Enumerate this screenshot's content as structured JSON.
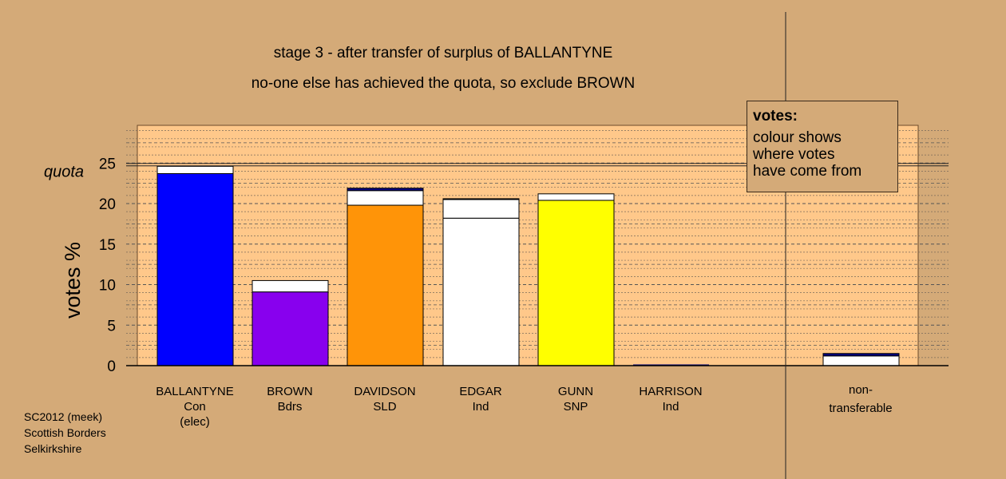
{
  "chart_data": {
    "type": "bar",
    "title": "stage 3 - after transfer of surplus of BALLANTYNE",
    "subtitle": "no-one else has achieved the quota, so exclude BROWN",
    "ylabel": "votes %",
    "ylim": [
      0,
      30
    ],
    "yticks": [
      0,
      5,
      10,
      15,
      20,
      25
    ],
    "quota": 24.8,
    "quota_label": "quota",
    "grid": true,
    "categories": [
      {
        "name": "BALLANTYNE",
        "party": "Con",
        "note": "(elec)",
        "base": 23.7,
        "base_color": "#0000ff",
        "segments": [
          {
            "value": 0.9,
            "color": "#ffffff"
          }
        ]
      },
      {
        "name": "BROWN",
        "party": "Bdrs",
        "note": "",
        "base": 9.1,
        "base_color": "#8800ee",
        "segments": [
          {
            "value": 1.4,
            "color": "#ffffff"
          }
        ]
      },
      {
        "name": "DAVIDSON",
        "party": "SLD",
        "note": "",
        "base": 19.8,
        "base_color": "#ff9408",
        "segments": [
          {
            "value": 1.8,
            "color": "#ffffff"
          },
          {
            "value": 0.3,
            "color": "#000080"
          }
        ]
      },
      {
        "name": "EDGAR",
        "party": "Ind",
        "note": "",
        "base": 18.2,
        "base_color": "#ffffff",
        "segments": [
          {
            "value": 2.3,
            "color": "#ffffff"
          },
          {
            "value": 0.1,
            "color": "#000080"
          }
        ]
      },
      {
        "name": "GUNN",
        "party": "SNP",
        "note": "",
        "base": 20.4,
        "base_color": "#ffff00",
        "segments": [
          {
            "value": 0.8,
            "color": "#ffffff"
          }
        ]
      },
      {
        "name": "HARRISON",
        "party": "Ind",
        "note": "",
        "base": 0,
        "base_color": "#ffffff",
        "segments": []
      }
    ],
    "nontransferable": {
      "label_line1": "non-",
      "label_line2": "transferable",
      "base": 0,
      "segments": [
        {
          "value": 1.2,
          "color": "#ffffff"
        },
        {
          "value": 0.3,
          "color": "#000080"
        }
      ]
    }
  },
  "legend": {
    "title": "votes:",
    "lines": [
      "colour shows",
      "where votes",
      "have come from"
    ]
  },
  "footer": {
    "lines": [
      "SC2012 (meek)",
      "Scottish Borders",
      "Selkirkshire"
    ]
  }
}
